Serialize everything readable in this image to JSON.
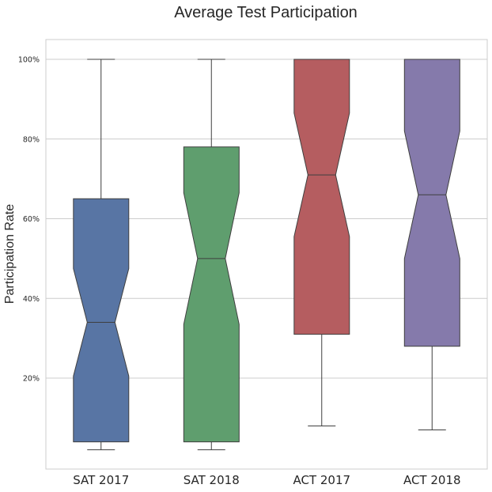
{
  "chart_data": {
    "type": "boxplot",
    "title": "Average Test Participation",
    "xlabel": "",
    "ylabel": "Participation Rate",
    "ylim": [
      -5,
      105
    ],
    "yticks": [
      {
        "value": 20,
        "label": "20%"
      },
      {
        "value": 40,
        "label": "40%"
      },
      {
        "value": 60,
        "label": "60%"
      },
      {
        "value": 80,
        "label": "80%"
      },
      {
        "value": 100,
        "label": "100%"
      }
    ],
    "notched": true,
    "grid": "horizontal",
    "categories": [
      "SAT 2017",
      "SAT 2018",
      "ACT 2017",
      "ACT 2018"
    ],
    "boxes": [
      {
        "category": "SAT 2017",
        "color": "#5875a4",
        "min": 2,
        "q1": 4,
        "median": 34,
        "q3": 65,
        "max": 100,
        "notch_low": 20.5,
        "notch_high": 47.5
      },
      {
        "category": "SAT 2018",
        "color": "#5f9e6e",
        "min": 2,
        "q1": 4,
        "median": 50,
        "q3": 78,
        "max": 100,
        "notch_low": 33.5,
        "notch_high": 66.5
      },
      {
        "category": "ACT 2017",
        "color": "#b55d60",
        "min": 8,
        "q1": 31,
        "median": 71,
        "q3": 100,
        "max": 100,
        "notch_low": 55.5,
        "notch_high": 86.5
      },
      {
        "category": "ACT 2018",
        "color": "#857aab",
        "min": 7,
        "q1": 28,
        "median": 66,
        "q3": 100,
        "max": 100,
        "notch_low": 50,
        "notch_high": 82
      }
    ]
  }
}
